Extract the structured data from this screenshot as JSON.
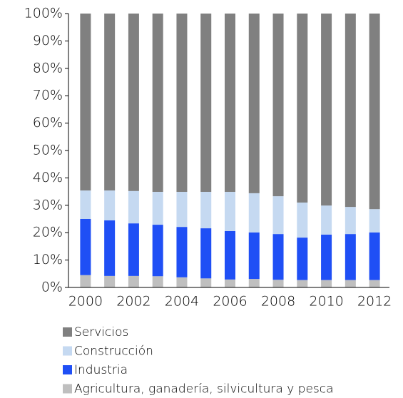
{
  "chart_data": {
    "type": "stacked_bar",
    "categories": [
      "2000",
      null,
      "2002",
      null,
      "2004",
      null,
      "2006",
      null,
      "2008",
      null,
      "2010",
      null,
      "2012"
    ],
    "series": [
      {
        "name": "Agricultura, ganadería, silvicultura  y pesca",
        "color": "#bfbfbf",
        "values": [
          4.5,
          4.2,
          4.2,
          4.1,
          3.7,
          3.3,
          2.9,
          3.1,
          2.8,
          2.7,
          2.7,
          2.7,
          2.7
        ]
      },
      {
        "name": "Industria",
        "color": "#1f4ff5",
        "values": [
          20.5,
          20.3,
          19.2,
          18.8,
          18.4,
          18.3,
          17.7,
          17.0,
          16.7,
          15.5,
          16.6,
          16.8,
          17.4
        ]
      },
      {
        "name": "Construcción",
        "color": "#c5d9f1",
        "values": [
          10.4,
          10.9,
          11.8,
          12.0,
          12.8,
          13.3,
          14.3,
          14.3,
          13.8,
          12.8,
          10.6,
          9.9,
          8.5
        ]
      },
      {
        "name": "Servicios",
        "color": "#808080",
        "values": [
          64.6,
          64.6,
          64.8,
          65.1,
          65.1,
          65.1,
          65.1,
          65.6,
          66.7,
          69.0,
          70.1,
          70.6,
          71.4
        ]
      }
    ],
    "ylim": [
      0,
      100
    ],
    "yticks": [
      {
        "value": 0,
        "label": "0%"
      },
      {
        "value": 10,
        "label": "10%"
      },
      {
        "value": 20,
        "label": "20%"
      },
      {
        "value": 30,
        "label": "30%"
      },
      {
        "value": 40,
        "label": "40%"
      },
      {
        "value": 50,
        "label": "50%"
      },
      {
        "value": 60,
        "label": "60%"
      },
      {
        "value": 70,
        "label": "70%"
      },
      {
        "value": 80,
        "label": "80%"
      },
      {
        "value": 90,
        "label": "90%"
      },
      {
        "value": 100,
        "label": "100%"
      }
    ],
    "grid": false,
    "legend": "bottom"
  }
}
